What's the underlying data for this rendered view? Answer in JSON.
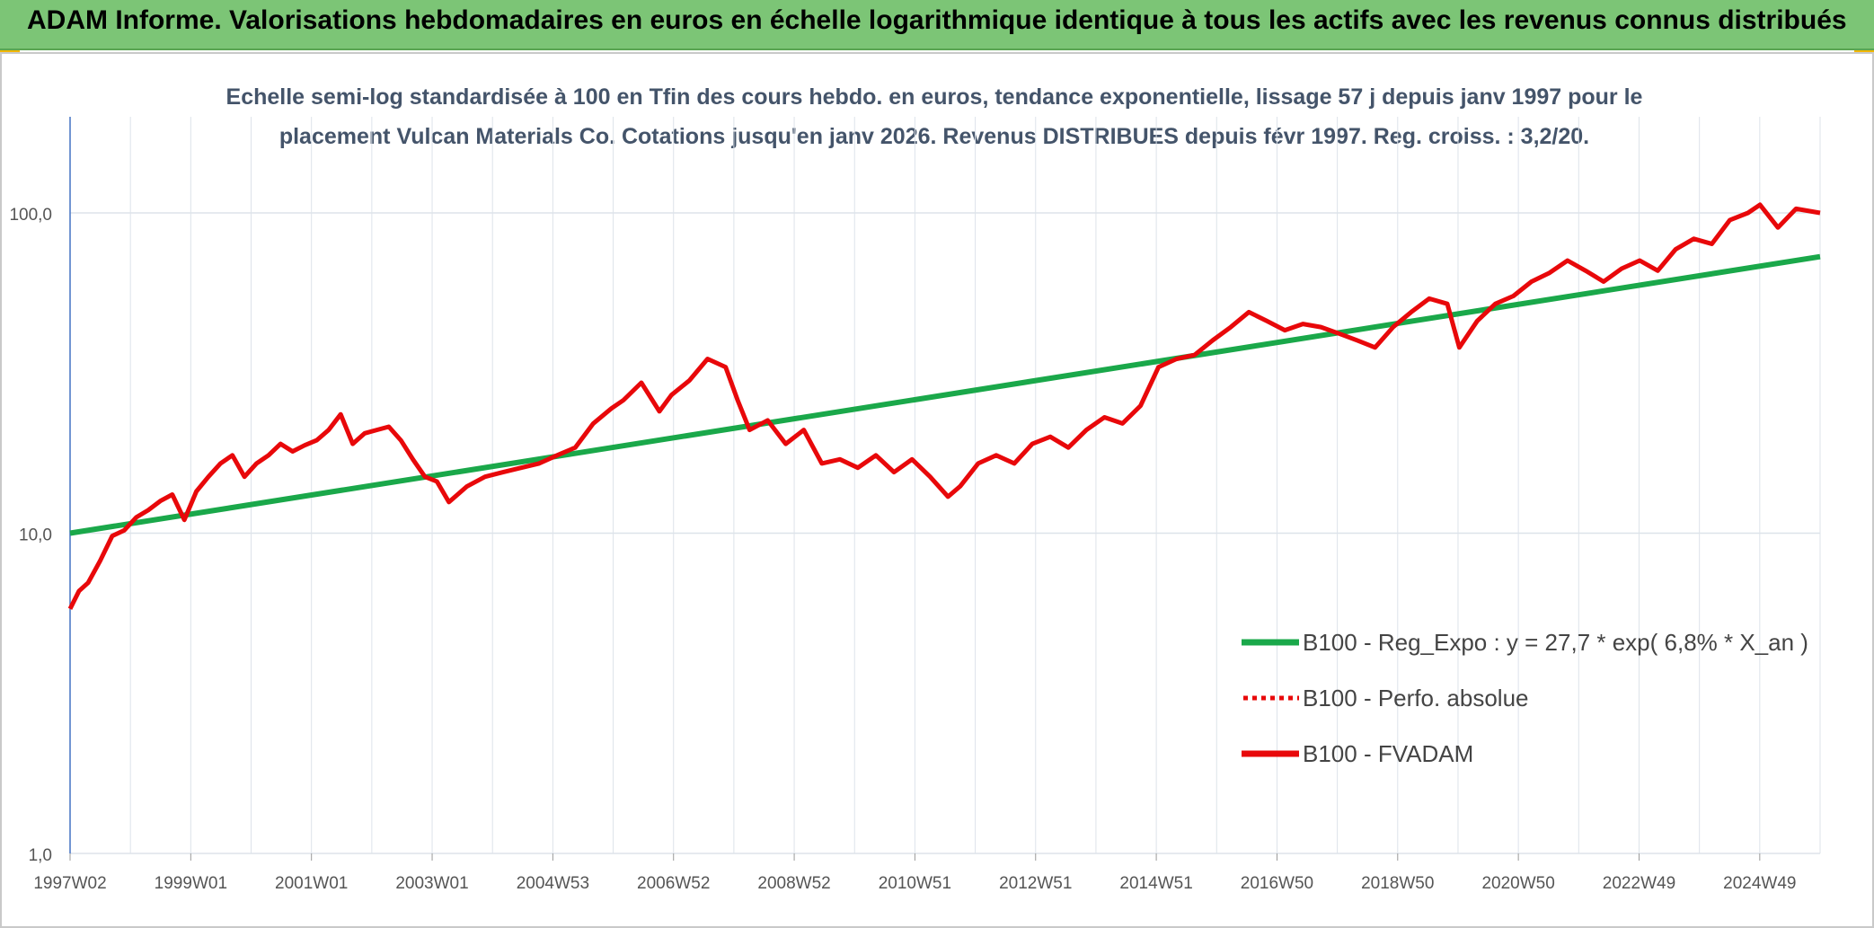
{
  "header": {
    "title": "ADAM Informe. Valorisations hebdomadaires en euros en échelle logarithmique identique à tous les actifs avec les revenus connus distribués"
  },
  "colors": {
    "header_bg": "#7cc576",
    "accent": "#f2b705",
    "trend": "#1aa84a",
    "series": "#e8080a",
    "title_text": "#44546a"
  },
  "chart_data": {
    "type": "line",
    "title": "Echelle semi-log standardisée à 100 en Tfin des cours hebdo. en euros, tendance exponentielle, lissage 57 j depuis janv 1997 pour le placement Vulcan Materials Co. Cotations jusqu'en janv 2026. Revenus DISTRIBUES depuis févr 1997. Reg. croiss. : 3,2/20.",
    "y_scale": "log",
    "ylim": [
      1,
      100
    ],
    "y_ticks": [
      "1,0",
      "10,0",
      "100,0"
    ],
    "x_ticks": [
      "1997W02",
      "1999W01",
      "2001W01",
      "2003W01",
      "2004W53",
      "2006W52",
      "2008W52",
      "2010W51",
      "2012W51",
      "2014W51",
      "2016W50",
      "2018W50",
      "2020W50",
      "2022W49",
      "2024W49"
    ],
    "xlim": [
      1997.0,
      2026.1
    ],
    "grid": true,
    "legend_position": "bottom-right",
    "series": [
      {
        "name": "B100 - Reg_Expo : y = 27,7 * exp( 6,8% *  X_an )",
        "style": "solid-green",
        "x": [
          1997.0,
          2026.1
        ],
        "y": [
          10.0,
          73.0
        ]
      },
      {
        "name": "B100 - Perfo. absolue",
        "style": "dotted-red",
        "x": [],
        "y": []
      },
      {
        "name": "B100 - FVADAM",
        "style": "solid-red",
        "x": [
          1997.0,
          1997.15,
          1997.3,
          1997.5,
          1997.7,
          1997.9,
          1998.1,
          1998.3,
          1998.5,
          1998.7,
          1998.9,
          1999.1,
          1999.3,
          1999.5,
          1999.7,
          1999.9,
          2000.1,
          2000.3,
          2000.5,
          2000.7,
          2000.9,
          2001.1,
          2001.3,
          2001.5,
          2001.7,
          2001.9,
          2002.1,
          2002.3,
          2002.5,
          2002.7,
          2002.9,
          2003.1,
          2003.3,
          2003.6,
          2003.9,
          2004.2,
          2004.5,
          2004.8,
          2005.1,
          2005.4,
          2005.7,
          2006.0,
          2006.2,
          2006.5,
          2006.8,
          2007.0,
          2007.3,
          2007.6,
          2007.9,
          2008.1,
          2008.3,
          2008.6,
          2008.9,
          2009.2,
          2009.5,
          2009.8,
          2010.1,
          2010.4,
          2010.7,
          2011.0,
          2011.3,
          2011.6,
          2011.8,
          2012.1,
          2012.4,
          2012.7,
          2013.0,
          2013.3,
          2013.6,
          2013.9,
          2014.2,
          2014.5,
          2014.8,
          2015.1,
          2015.4,
          2015.7,
          2016.0,
          2016.3,
          2016.6,
          2016.9,
          2017.2,
          2017.5,
          2017.8,
          2018.1,
          2018.4,
          2018.7,
          2019.0,
          2019.3,
          2019.6,
          2019.9,
          2020.1,
          2020.4,
          2020.7,
          2021.0,
          2021.3,
          2021.6,
          2021.9,
          2022.2,
          2022.5,
          2022.8,
          2023.1,
          2023.4,
          2023.7,
          2024.0,
          2024.3,
          2024.6,
          2024.9,
          2025.1,
          2025.4,
          2025.7,
          2026.1
        ],
        "y": [
          5.8,
          6.6,
          7.0,
          8.2,
          9.8,
          10.2,
          11.2,
          11.8,
          12.6,
          13.2,
          11.0,
          13.5,
          15.0,
          16.5,
          17.5,
          15.0,
          16.5,
          17.5,
          19.0,
          18.0,
          18.8,
          19.5,
          21.0,
          23.5,
          19.0,
          20.5,
          21.0,
          21.5,
          19.5,
          17.0,
          15.0,
          14.5,
          12.5,
          14.0,
          15.0,
          15.5,
          16.0,
          16.5,
          17.5,
          18.5,
          22.0,
          24.5,
          26.0,
          29.5,
          24.0,
          27.0,
          30.0,
          35.0,
          33.0,
          26.0,
          21.0,
          22.5,
          19.0,
          21.0,
          16.5,
          17.0,
          16.0,
          17.5,
          15.5,
          17.0,
          15.0,
          13.0,
          14.0,
          16.5,
          17.5,
          16.5,
          19.0,
          20.0,
          18.5,
          21.0,
          23.0,
          22.0,
          25.0,
          33.0,
          35.0,
          36.0,
          40.0,
          44.0,
          49.0,
          46.0,
          43.0,
          45.0,
          44.0,
          42.0,
          40.0,
          38.0,
          44.0,
          49.0,
          54.0,
          52.0,
          38.0,
          46.0,
          52.0,
          55.0,
          61.0,
          65.0,
          71.0,
          66.0,
          61.0,
          67.0,
          71.0,
          66.0,
          77.0,
          83.0,
          80.0,
          95.0,
          100.0,
          106.0,
          90.0,
          103.0,
          100.0
        ]
      }
    ]
  }
}
